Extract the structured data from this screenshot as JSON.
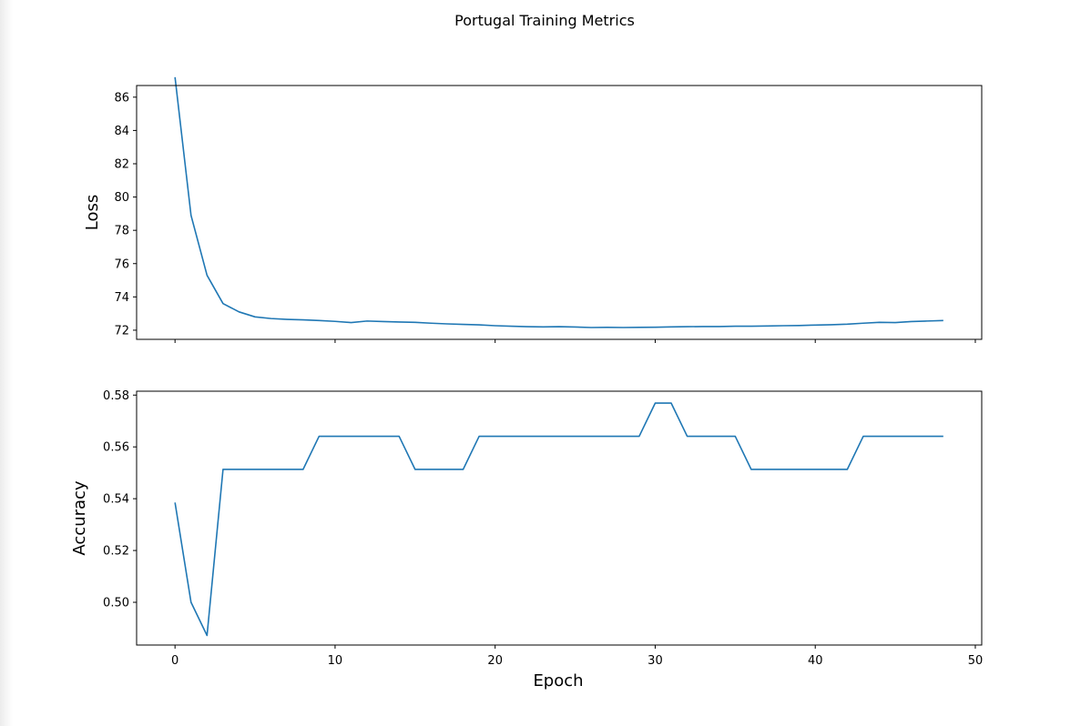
{
  "chart_data": {
    "type": "line",
    "title": "Portugal Training Metrics",
    "xlabel": "Epoch",
    "xlim": [
      -2.4,
      50.4
    ],
    "x_ticks": [
      0,
      10,
      20,
      30,
      40,
      50
    ],
    "x": [
      0,
      1,
      2,
      3,
      4,
      5,
      6,
      7,
      8,
      9,
      10,
      11,
      12,
      13,
      14,
      15,
      16,
      17,
      18,
      19,
      20,
      21,
      22,
      23,
      24,
      25,
      26,
      27,
      28,
      29,
      30,
      31,
      32,
      33,
      34,
      35,
      36,
      37,
      38,
      39,
      40,
      41,
      42,
      43,
      44,
      45,
      46,
      47,
      48
    ],
    "color": "#1f77b4",
    "grid": false,
    "subplots": [
      {
        "name": "loss",
        "ylabel": "Loss",
        "ylim": [
          71.45,
          86.7
        ],
        "y_ticks": [
          72,
          74,
          76,
          78,
          80,
          82,
          84,
          86
        ],
        "values": [
          87.2,
          78.9,
          75.3,
          73.6,
          73.1,
          72.8,
          72.7,
          72.65,
          72.62,
          72.58,
          72.53,
          72.46,
          72.55,
          72.52,
          72.49,
          72.47,
          72.42,
          72.38,
          72.35,
          72.32,
          72.27,
          72.24,
          72.21,
          72.2,
          72.21,
          72.19,
          72.16,
          72.17,
          72.16,
          72.17,
          72.18,
          72.2,
          72.21,
          72.22,
          72.22,
          72.24,
          72.24,
          72.25,
          72.27,
          72.28,
          72.31,
          72.33,
          72.36,
          72.42,
          72.47,
          72.46,
          72.52,
          72.55,
          72.58
        ]
      },
      {
        "name": "accuracy",
        "ylabel": "Accuracy",
        "ylim": [
          0.4835,
          0.5815
        ],
        "y_ticks": [
          0.5,
          0.52,
          0.54,
          0.56,
          0.58
        ],
        "y_tick_labels": [
          "0.50",
          "0.52",
          "0.54",
          "0.56",
          "0.58"
        ],
        "values": [
          0.5385,
          0.5,
          0.4872,
          0.5513,
          0.5513,
          0.5513,
          0.5513,
          0.5513,
          0.5513,
          0.5641,
          0.5641,
          0.5641,
          0.5641,
          0.5641,
          0.5641,
          0.5513,
          0.5513,
          0.5513,
          0.5513,
          0.5641,
          0.5641,
          0.5641,
          0.5641,
          0.5641,
          0.5641,
          0.5641,
          0.5641,
          0.5641,
          0.5641,
          0.5641,
          0.5769,
          0.5769,
          0.5641,
          0.5641,
          0.5641,
          0.5641,
          0.5513,
          0.5513,
          0.5513,
          0.5513,
          0.5513,
          0.5513,
          0.5513,
          0.5641,
          0.5641,
          0.5641,
          0.5641,
          0.5641,
          0.5641
        ]
      }
    ]
  }
}
